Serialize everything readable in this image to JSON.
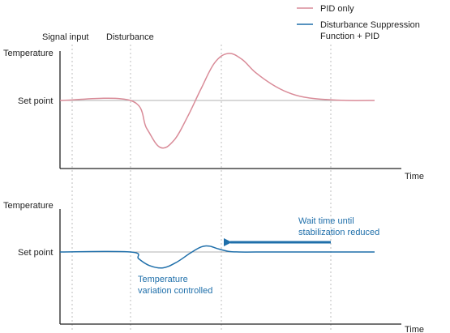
{
  "colors": {
    "pid_only": "#d98b98",
    "suppression": "#1f6faa",
    "axis": "#222222",
    "setpoint_line": "#b0b0b0",
    "guide_line": "#bdbdbd",
    "text": "#1f1f1f"
  },
  "legend": {
    "item1": "PID only",
    "item2_line1": "Disturbance Suppression",
    "item2_line2": "Function + PID"
  },
  "markers": {
    "signal_input": "Signal input",
    "disturbance": "Disturbance"
  },
  "chart_data": [
    {
      "type": "line",
      "panel": "top",
      "ylabel": "Temperature",
      "xlabel": "Time",
      "reference_label": "Set point",
      "series": [
        {
          "name": "PID only",
          "x": [
            0,
            1,
            1.3,
            1.55,
            1.8,
            2.05,
            2.3,
            2.55,
            2.8,
            3.05,
            3.3,
            3.6,
            3.9,
            4.2,
            4.6,
            5.0,
            5.5
          ],
          "y": [
            0,
            0,
            -0.6,
            -1.0,
            -0.85,
            -0.35,
            0.25,
            0.8,
            1.0,
            0.88,
            0.6,
            0.35,
            0.17,
            0.07,
            0.02,
            0.0,
            0.0
          ]
        }
      ]
    },
    {
      "type": "line",
      "panel": "bottom",
      "ylabel": "Temperature",
      "xlabel": "Time",
      "reference_label": "Set point",
      "series": [
        {
          "name": "Disturbance Suppression Function + PID",
          "x": [
            0,
            1,
            1.15,
            1.35,
            1.6,
            1.85,
            2.1,
            2.3,
            2.45,
            2.6,
            2.8,
            3.0,
            3.5,
            4.0,
            5.0,
            5.5
          ],
          "y": [
            0,
            0,
            -0.3,
            -0.6,
            -0.7,
            -0.45,
            -0.05,
            0.22,
            0.26,
            0.15,
            0.03,
            0.0,
            0.0,
            0.0,
            0.0,
            0.0
          ]
        }
      ],
      "annotations": {
        "wait_time_line1": "Wait time until",
        "wait_time_line2": "stabilization reduced",
        "variation_line1": "Temperature",
        "variation_line2": "variation controlled"
      }
    }
  ]
}
